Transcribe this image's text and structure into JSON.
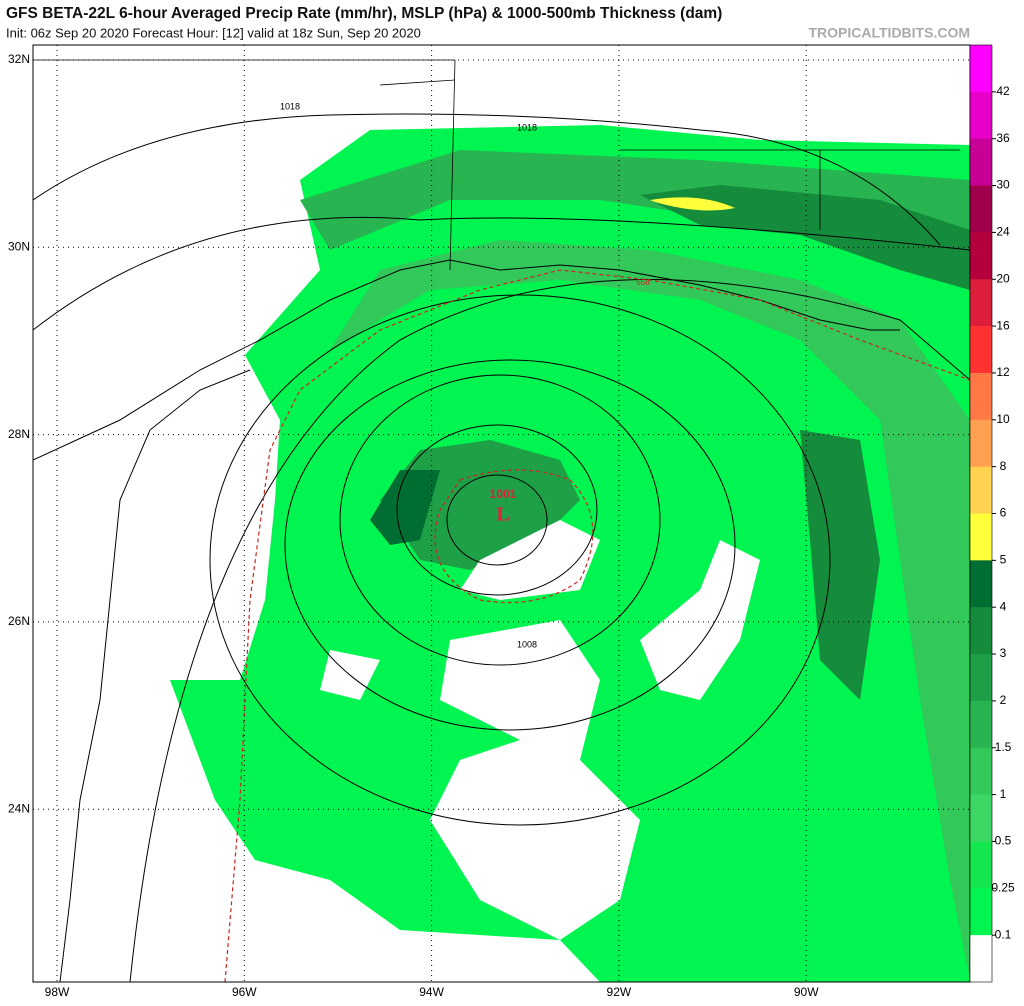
{
  "header": {
    "title": "GFS BETA-22L 6-hour Averaged Precip Rate (mm/hr), MSLP (hPa) & 1000-500mb Thickness (dam)",
    "subtitle": "Init: 06z Sep 20 2020   Forecast Hour: [12]   valid at 18z Sun, Sep 20 2020",
    "watermark": "TROPICALTIDBITS.COM"
  },
  "map": {
    "latitudes": [
      "32N",
      "30N",
      "28N",
      "26N",
      "24N"
    ],
    "longitudes": [
      "98W",
      "96W",
      "94W",
      "92W",
      "90W"
    ],
    "isobar_labels": [
      "1018",
      "1018",
      "1008"
    ],
    "low": {
      "pressure": "1001",
      "symbol": "L"
    },
    "thickness_label": "558"
  },
  "colorbar": {
    "labels": [
      "42",
      "36",
      "30",
      "24",
      "20",
      "16",
      "12",
      "10",
      "8",
      "6",
      "5",
      "4",
      "3",
      "2",
      "1.5",
      "1",
      "0.5",
      "0.25",
      "0.1"
    ],
    "colors": [
      "#ff00ff",
      "#e600c8",
      "#c80096",
      "#a0004b",
      "#b4003c",
      "#dc1e3c",
      "#ff3232",
      "#ff7846",
      "#ffa050",
      "#ffd250",
      "#ffff3c",
      "#006e32",
      "#148c3c",
      "#1ea046",
      "#28b450",
      "#32c85a",
      "#3cd764",
      "#14e650",
      "#00f550",
      "#ffffff"
    ]
  }
}
